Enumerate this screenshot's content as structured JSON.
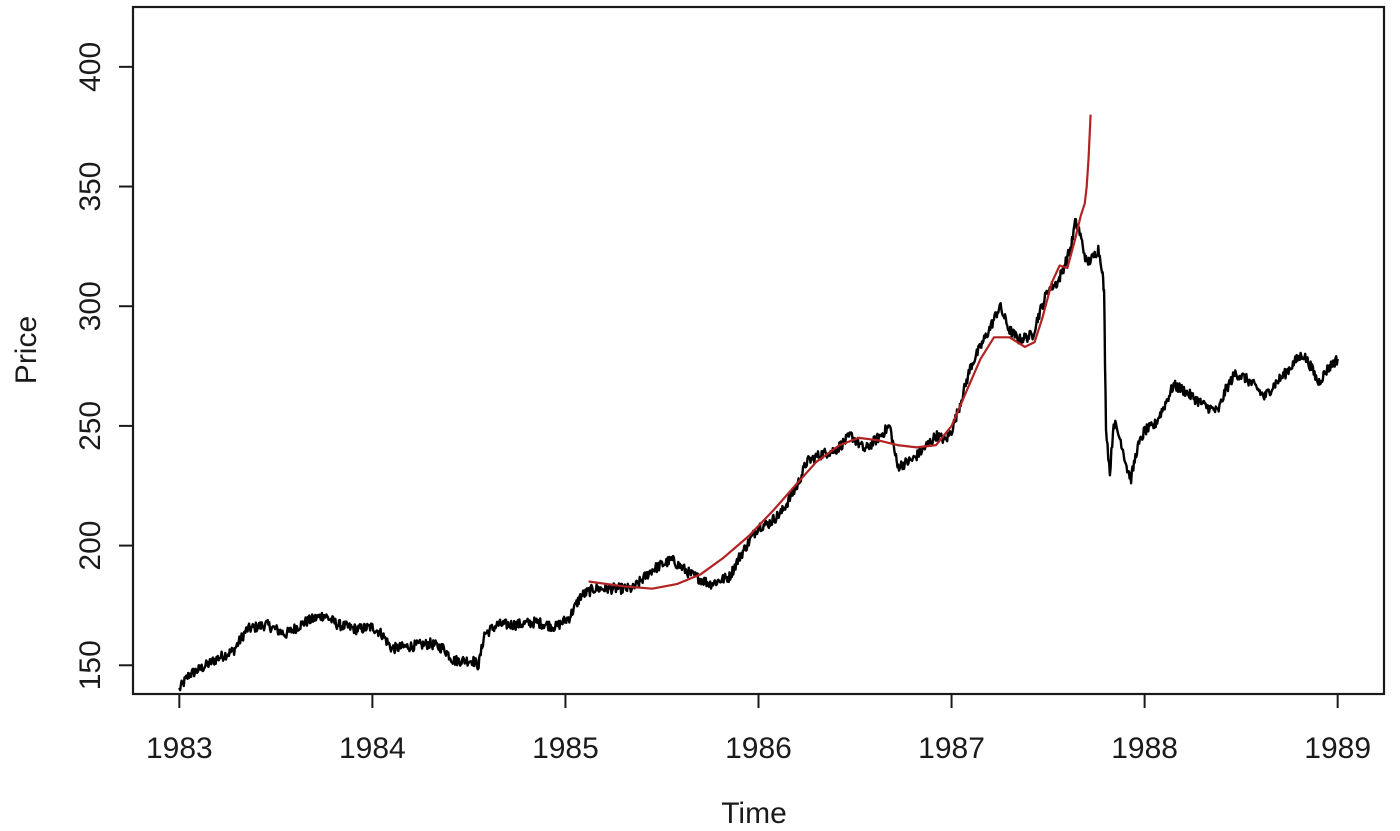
{
  "chart_data": {
    "type": "line",
    "title": "",
    "xlabel": "Time",
    "ylabel": "Price",
    "xlim": [
      1982.76,
      1989.24
    ],
    "ylim": [
      138,
      425
    ],
    "x_ticks": [
      1983,
      1984,
      1985,
      1986,
      1987,
      1988,
      1989
    ],
    "y_ticks": [
      150,
      200,
      250,
      300,
      350,
      400
    ],
    "grid": false,
    "legend": "none",
    "colors": {
      "price": "#000000",
      "fit": "#b22222",
      "axis": "#1a1a1a",
      "background": "#ffffff"
    },
    "series": [
      {
        "key": "price",
        "noise": 2.2,
        "points": [
          [
            1983.0,
            140
          ],
          [
            1983.05,
            146
          ],
          [
            1983.12,
            149
          ],
          [
            1983.2,
            153
          ],
          [
            1983.28,
            156
          ],
          [
            1983.35,
            165
          ],
          [
            1983.45,
            167
          ],
          [
            1983.55,
            163
          ],
          [
            1983.65,
            168
          ],
          [
            1983.75,
            171
          ],
          [
            1983.82,
            167
          ],
          [
            1983.92,
            165
          ],
          [
            1984.0,
            166
          ],
          [
            1984.05,
            163
          ],
          [
            1984.1,
            157
          ],
          [
            1984.2,
            158
          ],
          [
            1984.3,
            159
          ],
          [
            1984.37,
            157
          ],
          [
            1984.42,
            152
          ],
          [
            1984.52,
            152
          ],
          [
            1984.55,
            150
          ],
          [
            1984.58,
            163
          ],
          [
            1984.65,
            167
          ],
          [
            1984.75,
            167
          ],
          [
            1984.85,
            168
          ],
          [
            1984.95,
            166
          ],
          [
            1985.02,
            170
          ],
          [
            1985.08,
            179
          ],
          [
            1985.15,
            182
          ],
          [
            1985.25,
            182
          ],
          [
            1985.35,
            182
          ],
          [
            1985.45,
            190
          ],
          [
            1985.55,
            194
          ],
          [
            1985.65,
            188
          ],
          [
            1985.75,
            184
          ],
          [
            1985.85,
            187
          ],
          [
            1985.9,
            195
          ],
          [
            1986.0,
            208
          ],
          [
            1986.05,
            209
          ],
          [
            1986.12,
            214
          ],
          [
            1986.2,
            225
          ],
          [
            1986.25,
            235
          ],
          [
            1986.32,
            238
          ],
          [
            1986.4,
            240
          ],
          [
            1986.48,
            246
          ],
          [
            1986.55,
            240
          ],
          [
            1986.62,
            245
          ],
          [
            1986.68,
            250
          ],
          [
            1986.72,
            233
          ],
          [
            1986.8,
            236
          ],
          [
            1986.85,
            240
          ],
          [
            1986.92,
            246
          ],
          [
            1986.97,
            244
          ],
          [
            1987.0,
            248
          ],
          [
            1987.04,
            258
          ],
          [
            1987.1,
            275
          ],
          [
            1987.15,
            283
          ],
          [
            1987.2,
            291
          ],
          [
            1987.25,
            300
          ],
          [
            1987.3,
            290
          ],
          [
            1987.35,
            286
          ],
          [
            1987.42,
            288
          ],
          [
            1987.45,
            296
          ],
          [
            1987.5,
            307
          ],
          [
            1987.55,
            310
          ],
          [
            1987.58,
            316
          ],
          [
            1987.62,
            325
          ],
          [
            1987.64,
            335
          ],
          [
            1987.66,
            332
          ],
          [
            1987.7,
            318
          ],
          [
            1987.73,
            320
          ],
          [
            1987.76,
            324
          ],
          [
            1987.78,
            316
          ],
          [
            1987.79,
            305
          ],
          [
            1987.8,
            250
          ],
          [
            1987.82,
            230
          ],
          [
            1987.84,
            252
          ],
          [
            1987.88,
            243
          ],
          [
            1987.91,
            232
          ],
          [
            1987.93,
            228
          ],
          [
            1987.96,
            240
          ],
          [
            1988.0,
            248
          ],
          [
            1988.05,
            250
          ],
          [
            1988.1,
            258
          ],
          [
            1988.15,
            267
          ],
          [
            1988.2,
            265
          ],
          [
            1988.25,
            262
          ],
          [
            1988.32,
            258
          ],
          [
            1988.38,
            256
          ],
          [
            1988.42,
            265
          ],
          [
            1988.47,
            272
          ],
          [
            1988.52,
            270
          ],
          [
            1988.58,
            266
          ],
          [
            1988.62,
            262
          ],
          [
            1988.68,
            268
          ],
          [
            1988.73,
            272
          ],
          [
            1988.78,
            277
          ],
          [
            1988.82,
            280
          ],
          [
            1988.86,
            275
          ],
          [
            1988.9,
            268
          ],
          [
            1988.95,
            274
          ],
          [
            1989.0,
            278
          ]
        ]
      },
      {
        "key": "fit",
        "noise": 0,
        "points": [
          [
            1985.12,
            185
          ],
          [
            1985.3,
            183
          ],
          [
            1985.45,
            182
          ],
          [
            1985.58,
            184
          ],
          [
            1985.7,
            188
          ],
          [
            1985.82,
            195
          ],
          [
            1985.95,
            204
          ],
          [
            1986.08,
            215
          ],
          [
            1986.2,
            226
          ],
          [
            1986.3,
            235
          ],
          [
            1986.42,
            242
          ],
          [
            1986.52,
            245
          ],
          [
            1986.62,
            244
          ],
          [
            1986.72,
            242
          ],
          [
            1986.82,
            241
          ],
          [
            1986.92,
            242
          ],
          [
            1987.0,
            250
          ],
          [
            1987.08,
            265
          ],
          [
            1987.15,
            278
          ],
          [
            1987.22,
            287
          ],
          [
            1987.3,
            287
          ],
          [
            1987.38,
            283
          ],
          [
            1987.43,
            285
          ],
          [
            1987.47,
            295
          ],
          [
            1987.52,
            310
          ],
          [
            1987.56,
            317
          ],
          [
            1987.6,
            316
          ],
          [
            1987.64,
            328
          ],
          [
            1987.67,
            338
          ],
          [
            1987.69,
            343
          ],
          [
            1987.7,
            350
          ],
          [
            1987.71,
            362
          ],
          [
            1987.72,
            380
          ]
        ]
      }
    ]
  }
}
